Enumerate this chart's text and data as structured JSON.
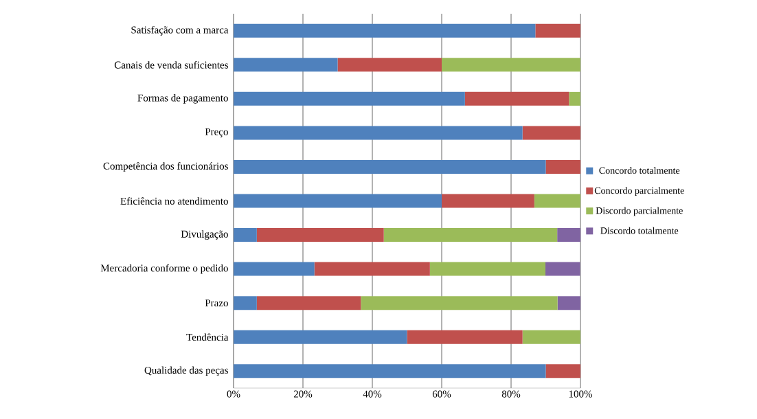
{
  "chart_data": {
    "type": "bar",
    "orientation": "horizontal",
    "stacked": true,
    "categories": [
      "Satisfação com a marca",
      "Canais de venda suficientes",
      "Formas de pagamento",
      "Preço",
      "Competência dos funcionários",
      "Eficiência no atendimento",
      "Divulgação",
      "Mercadoria conforme o pedido",
      "Prazo",
      "Tendência",
      "Qualidade das peças"
    ],
    "series": [
      {
        "name": "Concordo totalmente",
        "color": "#4f81bd",
        "values": [
          87,
          30,
          66.7,
          83.3,
          90,
          60,
          6.7,
          23.3,
          6.7,
          50,
          90
        ]
      },
      {
        "name": "Concordo parcialmente",
        "color": "#c0504d",
        "values": [
          13,
          30,
          30,
          16.7,
          10,
          26.7,
          36.6,
          33.3,
          30,
          33.3,
          10
        ]
      },
      {
        "name": "Discordo parcialmente",
        "color": "#9bbb59",
        "values": [
          0,
          40,
          3.3,
          0,
          0,
          13.3,
          50,
          33.3,
          56.7,
          16.7,
          0
        ]
      },
      {
        "name": "Discordo totalmente",
        "color": "#8064a2",
        "values": [
          0,
          0,
          0,
          0,
          0,
          0,
          6.7,
          10,
          6.6,
          0,
          0
        ]
      }
    ],
    "xlim": [
      0,
      100
    ],
    "xticks": [
      {
        "value": 0,
        "label": "0%"
      },
      {
        "value": 20,
        "label": "20%"
      },
      {
        "value": 40,
        "label": "40%"
      },
      {
        "value": 60,
        "label": "60%"
      },
      {
        "value": 80,
        "label": "80%"
      },
      {
        "value": 100,
        "label": "100%"
      }
    ],
    "grid": "x",
    "legend": "right"
  }
}
